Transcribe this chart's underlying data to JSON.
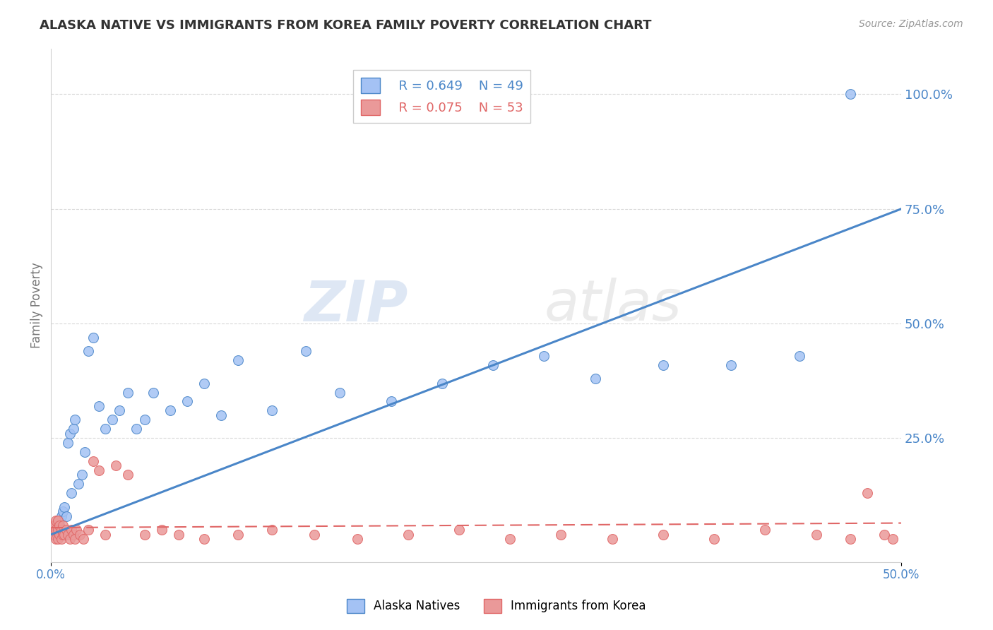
{
  "title": "ALASKA NATIVE VS IMMIGRANTS FROM KOREA FAMILY POVERTY CORRELATION CHART",
  "source": "Source: ZipAtlas.com",
  "ylabel": "Family Poverty",
  "legend_r1": "R = 0.649",
  "legend_n1": "N = 49",
  "legend_r2": "R = 0.075",
  "legend_n2": "N = 53",
  "blue_color": "#a4c2f4",
  "pink_color": "#ea9999",
  "line_blue": "#4a86c8",
  "line_pink": "#e06666",
  "watermark_zip": "ZIP",
  "watermark_atlas": "atlas",
  "alaska_x": [
    0.001,
    0.002,
    0.002,
    0.003,
    0.003,
    0.004,
    0.004,
    0.005,
    0.005,
    0.006,
    0.006,
    0.007,
    0.008,
    0.009,
    0.01,
    0.011,
    0.012,
    0.013,
    0.014,
    0.016,
    0.018,
    0.02,
    0.022,
    0.025,
    0.028,
    0.032,
    0.036,
    0.04,
    0.045,
    0.05,
    0.055,
    0.06,
    0.07,
    0.08,
    0.09,
    0.1,
    0.11,
    0.13,
    0.15,
    0.17,
    0.2,
    0.23,
    0.26,
    0.29,
    0.32,
    0.36,
    0.4,
    0.44,
    0.47
  ],
  "alaska_y": [
    0.04,
    0.04,
    0.05,
    0.05,
    0.06,
    0.05,
    0.07,
    0.06,
    0.07,
    0.05,
    0.08,
    0.09,
    0.1,
    0.08,
    0.24,
    0.26,
    0.13,
    0.27,
    0.29,
    0.15,
    0.17,
    0.22,
    0.44,
    0.47,
    0.32,
    0.27,
    0.29,
    0.31,
    0.35,
    0.27,
    0.29,
    0.35,
    0.31,
    0.33,
    0.37,
    0.3,
    0.42,
    0.31,
    0.44,
    0.35,
    0.33,
    0.37,
    0.41,
    0.43,
    0.38,
    0.41,
    0.41,
    0.43,
    1.0
  ],
  "korea_x": [
    0.001,
    0.001,
    0.002,
    0.002,
    0.003,
    0.003,
    0.003,
    0.004,
    0.004,
    0.004,
    0.005,
    0.005,
    0.006,
    0.006,
    0.007,
    0.007,
    0.008,
    0.009,
    0.01,
    0.011,
    0.012,
    0.013,
    0.014,
    0.015,
    0.017,
    0.019,
    0.022,
    0.025,
    0.028,
    0.032,
    0.038,
    0.045,
    0.055,
    0.065,
    0.075,
    0.09,
    0.11,
    0.13,
    0.155,
    0.18,
    0.21,
    0.24,
    0.27,
    0.3,
    0.33,
    0.36,
    0.39,
    0.42,
    0.45,
    0.47,
    0.48,
    0.49,
    0.495
  ],
  "korea_y": [
    0.05,
    0.06,
    0.04,
    0.06,
    0.03,
    0.05,
    0.07,
    0.03,
    0.05,
    0.07,
    0.04,
    0.06,
    0.03,
    0.05,
    0.04,
    0.06,
    0.04,
    0.05,
    0.04,
    0.03,
    0.05,
    0.04,
    0.03,
    0.05,
    0.04,
    0.03,
    0.05,
    0.2,
    0.18,
    0.04,
    0.19,
    0.17,
    0.04,
    0.05,
    0.04,
    0.03,
    0.04,
    0.05,
    0.04,
    0.03,
    0.04,
    0.05,
    0.03,
    0.04,
    0.03,
    0.04,
    0.03,
    0.05,
    0.04,
    0.03,
    0.13,
    0.04,
    0.03
  ],
  "blue_line_x": [
    0.0,
    0.5
  ],
  "blue_line_y": [
    0.04,
    0.75
  ],
  "pink_line_x": [
    0.0,
    0.5
  ],
  "pink_line_y": [
    0.055,
    0.065
  ],
  "xlim": [
    0.0,
    0.5
  ],
  "ylim": [
    -0.02,
    1.1
  ],
  "yticks": [
    0.0,
    0.25,
    0.5,
    0.75,
    1.0
  ],
  "ytick_labels": [
    "",
    "25.0%",
    "50.0%",
    "75.0%",
    "100.0%"
  ],
  "xtick_positions": [
    0.0,
    0.5
  ],
  "xtick_labels": [
    "0.0%",
    "50.0%"
  ],
  "background_color": "#ffffff",
  "grid_color": "#d0d0d0"
}
